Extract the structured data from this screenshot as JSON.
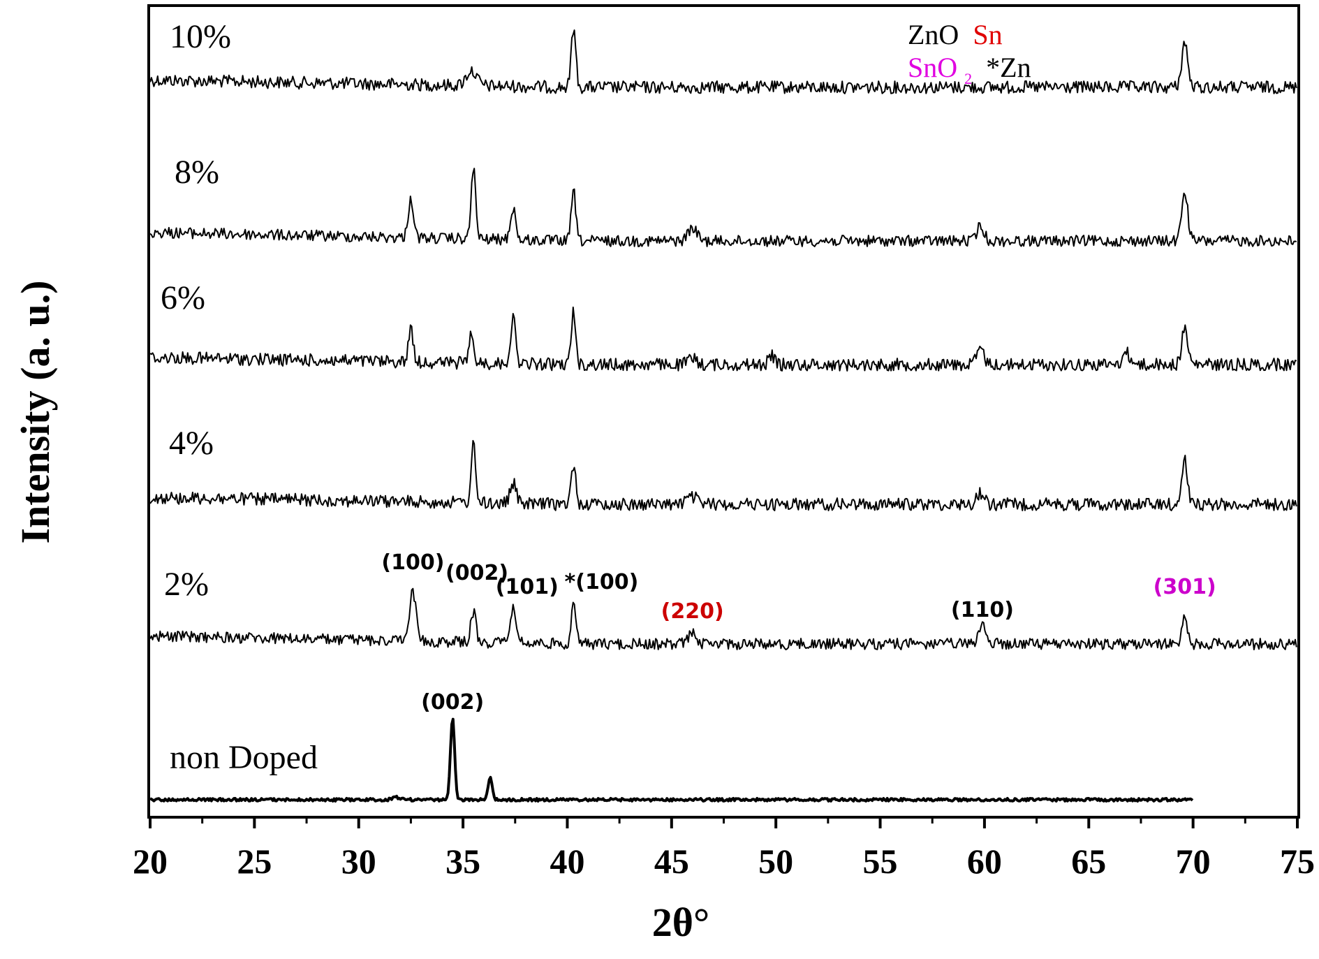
{
  "chart_data": {
    "type": "line",
    "xlabel": "2θ°",
    "ylabel": "Intensity (a. u.)",
    "xlim": [
      20,
      75
    ],
    "x_ticks": [
      "20",
      "25",
      "30",
      "35",
      "40",
      "45",
      "50",
      "55",
      "60",
      "65",
      "70",
      "75"
    ],
    "y_ticks_shown": false,
    "legend": {
      "placement": "top-right",
      "entries": [
        {
          "text": "ZnO",
          "color": "#000000"
        },
        {
          "text": "Sn",
          "color": "#e00000"
        },
        {
          "text": "SnO",
          "sub": "2",
          "color": "#e000e0"
        },
        {
          "text": "*Zn",
          "color": "#000000"
        }
      ]
    },
    "series": [
      {
        "name": "10%",
        "x_range": [
          20,
          75
        ],
        "peaks": [
          {
            "x": 35.4,
            "h": 0.25,
            "w": 0.7
          },
          {
            "x": 40.3,
            "h": 1.0,
            "w": 0.3
          },
          {
            "x": 69.6,
            "h": 0.75,
            "w": 0.4
          }
        ]
      },
      {
        "name": "8%",
        "x_range": [
          20,
          75
        ],
        "peaks": [
          {
            "x": 32.5,
            "h": 0.55,
            "w": 0.35
          },
          {
            "x": 35.5,
            "h": 1.0,
            "w": 0.3
          },
          {
            "x": 37.4,
            "h": 0.45,
            "w": 0.35
          },
          {
            "x": 40.3,
            "h": 0.7,
            "w": 0.3
          },
          {
            "x": 46.0,
            "h": 0.18,
            "w": 0.6
          },
          {
            "x": 59.8,
            "h": 0.2,
            "w": 0.5
          },
          {
            "x": 69.6,
            "h": 0.7,
            "w": 0.4
          }
        ]
      },
      {
        "name": "6%",
        "x_range": [
          20,
          75
        ],
        "peaks": [
          {
            "x": 32.5,
            "h": 0.6,
            "w": 0.3
          },
          {
            "x": 35.4,
            "h": 0.45,
            "w": 0.35
          },
          {
            "x": 37.4,
            "h": 0.75,
            "w": 0.35
          },
          {
            "x": 40.3,
            "h": 0.9,
            "w": 0.3
          },
          {
            "x": 46.0,
            "h": 0.1,
            "w": 0.6
          },
          {
            "x": 49.8,
            "h": 0.15,
            "w": 0.4
          },
          {
            "x": 59.8,
            "h": 0.25,
            "w": 0.5
          },
          {
            "x": 66.8,
            "h": 0.2,
            "w": 0.5
          },
          {
            "x": 69.6,
            "h": 0.6,
            "w": 0.4
          }
        ]
      },
      {
        "name": "4%",
        "x_range": [
          20,
          75
        ],
        "peaks": [
          {
            "x": 35.5,
            "h": 1.0,
            "w": 0.3
          },
          {
            "x": 37.4,
            "h": 0.35,
            "w": 0.4
          },
          {
            "x": 40.3,
            "h": 0.7,
            "w": 0.3
          },
          {
            "x": 46.0,
            "h": 0.12,
            "w": 0.8
          },
          {
            "x": 59.8,
            "h": 0.2,
            "w": 0.5
          },
          {
            "x": 69.6,
            "h": 0.8,
            "w": 0.35
          }
        ]
      },
      {
        "name": "2%",
        "x_range": [
          20,
          75
        ],
        "peaks": [
          {
            "x": 32.6,
            "h": 0.75,
            "w": 0.4
          },
          {
            "x": 35.5,
            "h": 0.45,
            "w": 0.35
          },
          {
            "x": 37.4,
            "h": 0.5,
            "w": 0.45
          },
          {
            "x": 40.3,
            "h": 0.65,
            "w": 0.3
          },
          {
            "x": 46.0,
            "h": 0.15,
            "w": 0.6
          },
          {
            "x": 59.9,
            "h": 0.3,
            "w": 0.5
          },
          {
            "x": 69.6,
            "h": 0.45,
            "w": 0.35
          }
        ]
      },
      {
        "name": "non Doped",
        "x_range": [
          20,
          70
        ],
        "peaks": [
          {
            "x": 34.5,
            "h": 1.0,
            "w": 0.28
          },
          {
            "x": 36.3,
            "h": 0.28,
            "w": 0.28
          },
          {
            "x": 31.8,
            "h": 0.03,
            "w": 0.5
          }
        ]
      }
    ],
    "annotations": [
      {
        "text": "(100)",
        "x": 32.6,
        "series": "2%",
        "color": "#000000"
      },
      {
        "text": "(002)",
        "x": 35.5,
        "series": "2%",
        "color": "#000000"
      },
      {
        "text": "(101)",
        "x": 37.4,
        "series": "2%",
        "color": "#000000"
      },
      {
        "text": "*(100)",
        "x": 40.3,
        "series": "2%",
        "color": "#000000"
      },
      {
        "text": "(220)",
        "x": 46.0,
        "series": "2%",
        "color": "#cc0000"
      },
      {
        "text": "(110)",
        "x": 59.9,
        "series": "2%",
        "color": "#000000"
      },
      {
        "text": "(301)",
        "x": 69.6,
        "series": "2%",
        "color": "#cc00cc"
      },
      {
        "text": "(002)",
        "x": 34.5,
        "series": "non Doped",
        "color": "#000000"
      }
    ]
  }
}
